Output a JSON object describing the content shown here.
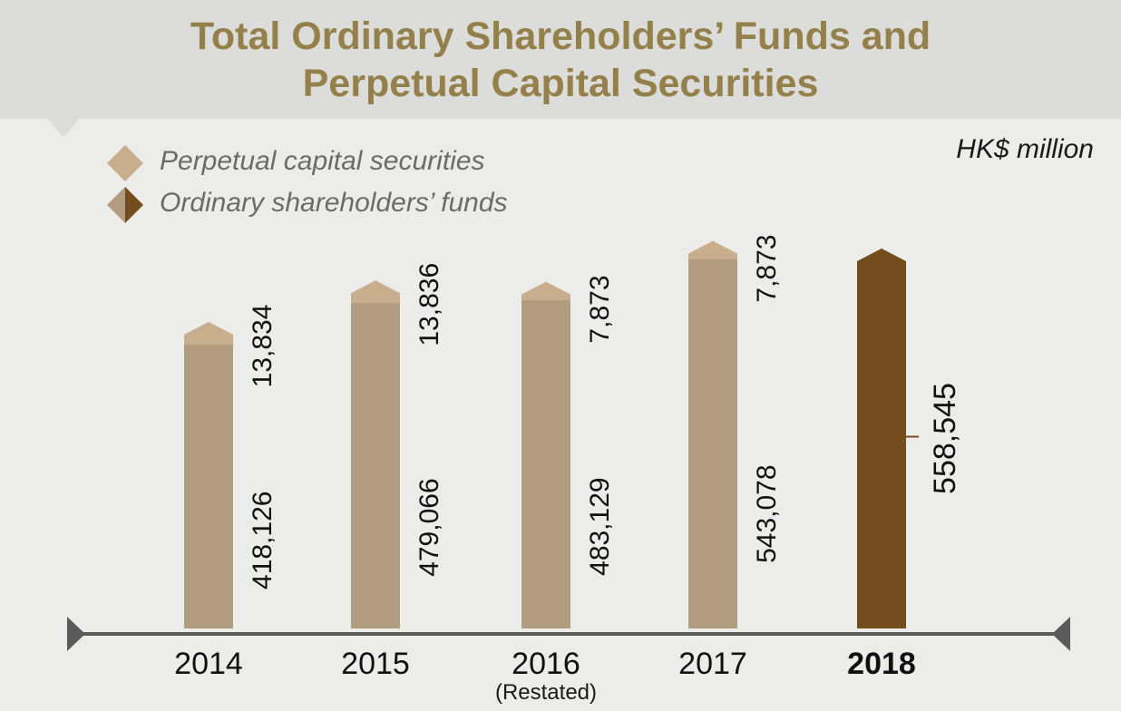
{
  "title": {
    "line1": "Total Ordinary Shareholders’ Funds and",
    "line2": "Perpetual Capital Securities"
  },
  "unit_label": "HK$ million",
  "legend": [
    {
      "label": "Perpetual capital securities",
      "icon": "diamond-icon",
      "color": "#c9ae8e"
    },
    {
      "label": "Ordinary shareholders’ funds",
      "icon": "half-diamond-icon",
      "color": "#b29d81",
      "color_latest": "#734d1d"
    }
  ],
  "colors": {
    "perpetual": "#c9ae8e",
    "ordinary": "#b29d81",
    "latest": "#734d1d",
    "axis": "#5a5a5a",
    "title": "#94804a"
  },
  "chart_data": {
    "type": "bar",
    "stacked": true,
    "categories": [
      "2014",
      "2015",
      "2016",
      "2017",
      "2018"
    ],
    "category_notes": [
      "",
      "",
      "(Restated)",
      "",
      ""
    ],
    "highlight_category": "2018",
    "series": [
      {
        "name": "Ordinary shareholders’ funds",
        "values": [
          418126,
          479066,
          483129,
          543078,
          558545
        ]
      },
      {
        "name": "Perpetual capital securities",
        "values": [
          13834,
          13836,
          7873,
          7873,
          null
        ]
      }
    ],
    "value_labels": {
      "ordinary": [
        "418,126",
        "479,066",
        "483,129",
        "543,078",
        "558,545"
      ],
      "perpetual": [
        "13,834",
        "13,836",
        "7,873",
        "7,873",
        ""
      ]
    },
    "ylim": [
      0,
      580000
    ],
    "grid": false,
    "legend_position": "top-left"
  }
}
